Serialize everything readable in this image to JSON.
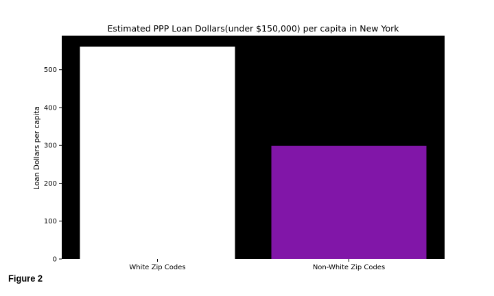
{
  "figure_label": "Figure 2",
  "chart_data": {
    "type": "bar",
    "title": "Estimated PPP Loan Dollars(under $150,000) per capita in New York",
    "xlabel": "",
    "ylabel": "Loan Dollars per capita",
    "categories": [
      "White Zip Codes",
      "Non-White Zip Codes"
    ],
    "values": [
      561,
      299
    ],
    "bar_colors": [
      "#ffffff",
      "#8116a8"
    ],
    "plot_background": "#000000",
    "ylim": [
      0,
      590
    ],
    "yticks": [
      0,
      100,
      200,
      300,
      400,
      500
    ],
    "grid": false,
    "legend": "none"
  }
}
